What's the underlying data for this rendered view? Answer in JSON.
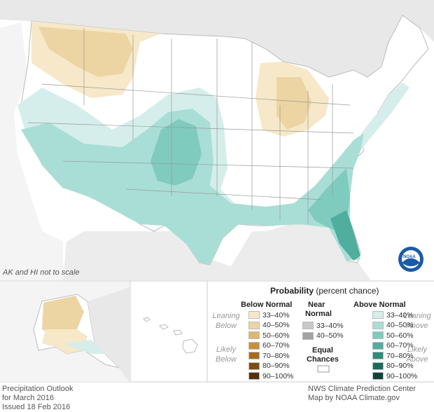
{
  "map": {
    "note": "AK and HI not to scale"
  },
  "legend": {
    "title": "Probability",
    "title_suffix": "(percent chance)",
    "below": {
      "heading": "Below Normal",
      "lean_label": "Leaning Below",
      "likely_label": "Likely Below",
      "levels": [
        {
          "label": "33–40%",
          "color": "#f6e8c8"
        },
        {
          "label": "40–50%",
          "color": "#ecd5a3"
        },
        {
          "label": "50–60%",
          "color": "#dcb86f"
        },
        {
          "label": "60–70%",
          "color": "#c9903a"
        },
        {
          "label": "70–80%",
          "color": "#a86b1e"
        },
        {
          "label": "80–90%",
          "color": "#7e4c12"
        },
        {
          "label": "90–100%",
          "color": "#55300a"
        }
      ]
    },
    "near": {
      "heading_line1": "Near",
      "heading_line2": "Normal",
      "levels": [
        {
          "label": "33–40%",
          "color": "#c8c8c8"
        },
        {
          "label": "40–50%",
          "color": "#a3a3a3"
        }
      ],
      "equal_line1": "Equal",
      "equal_line2": "Chances",
      "equal_color": "#ffffff"
    },
    "above": {
      "heading": "Above Normal",
      "lean_label": "Leaning Above",
      "likely_label": "Likely Above",
      "levels": [
        {
          "label": "33–40%",
          "color": "#d5eeec"
        },
        {
          "label": "40–50%",
          "color": "#a9ded6"
        },
        {
          "label": "50–60%",
          "color": "#7fcbbe"
        },
        {
          "label": "60–70%",
          "color": "#4fae9e"
        },
        {
          "label": "70–80%",
          "color": "#2d8c7b"
        },
        {
          "label": "80–90%",
          "color": "#1b6a5c"
        },
        {
          "label": "90–100%",
          "color": "#0d433a"
        }
      ]
    }
  },
  "footer": {
    "left_line1": "Precipitation Outlook",
    "left_line2": "for March 2016",
    "left_line3": "Issued 18 Feb 2016",
    "right_line1": "NWS Climate Prediction Center",
    "right_line2": "Map by NOAA Climate.gov"
  },
  "logo": {
    "text": "NOAA"
  }
}
